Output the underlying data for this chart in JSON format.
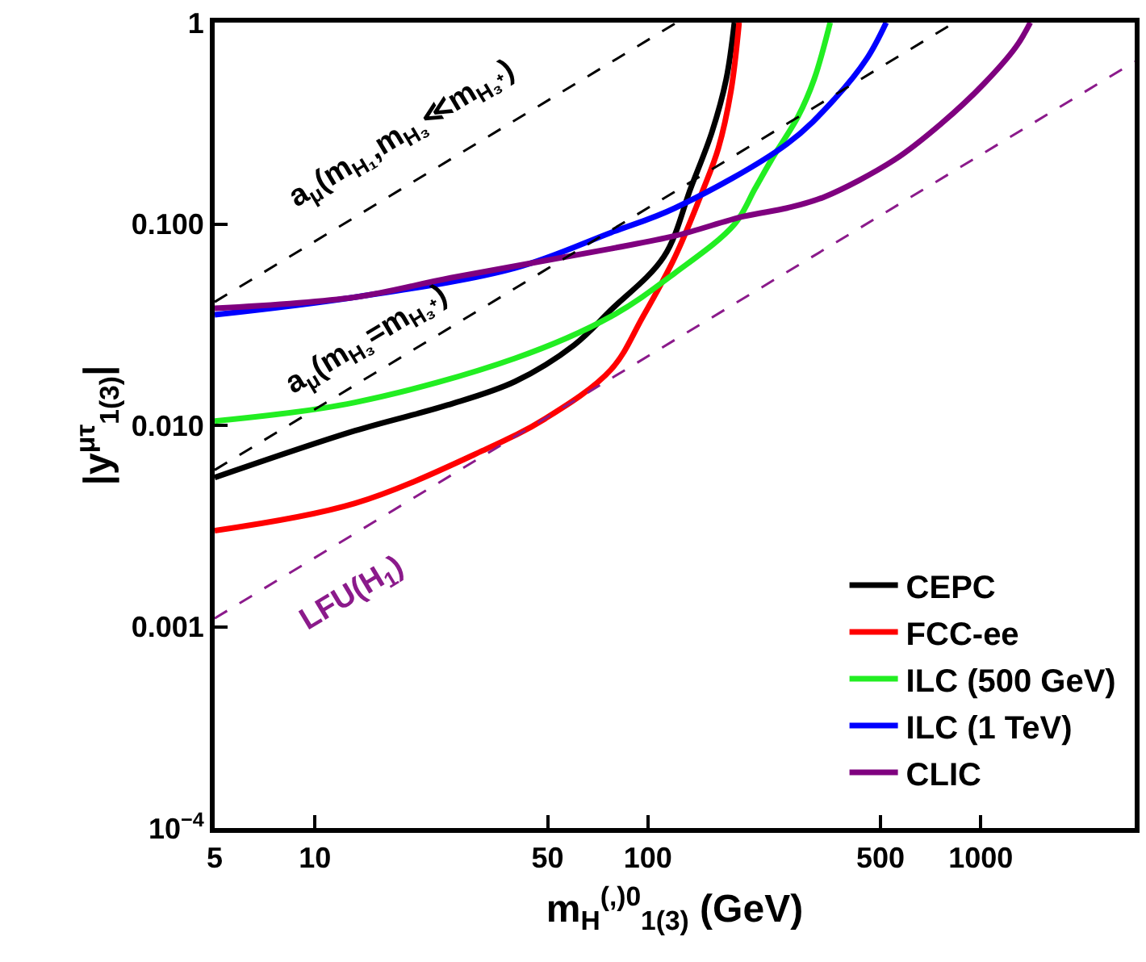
{
  "chart_data": {
    "type": "line",
    "xlabel": "m$_{H}$$^{(,)0}$$_{1(3)}$ (GeV)",
    "ylabel": "|y$^{μτ}$$_{1(3)}$|",
    "log": "xy",
    "legend": "bottom right",
    "marker": "none",
    "xlim": [
      5,
      2900
    ],
    "xticks": [
      5,
      10,
      50,
      100,
      500,
      1000
    ],
    "ylim": [
      0.0001,
      1
    ],
    "yticks": [
      {
        "value": 0.0001,
        "label": "10$^{−4}$"
      },
      {
        "value": 0.001,
        "label": "0.001"
      },
      {
        "value": 0.01,
        "label": "0.010"
      },
      {
        "value": 0.1,
        "label": "0.100"
      },
      1
    ],
    "series": [
      {
        "name": "CEPC",
        "color": "#000000",
        "x": [
          5,
          13.2,
          25,
          39.9,
          60,
          77.5,
          111.7,
          134.8,
          155.7,
          172,
          182
        ],
        "values": [
          0.0055,
          0.0094,
          0.0126,
          0.0165,
          0.025,
          0.0374,
          0.0687,
          0.152,
          0.285,
          0.524,
          1
        ]
      },
      {
        "name": "FCC-ee",
        "color": "#ff0000",
        "x": [
          5,
          13.2,
          32,
          49.2,
          77.5,
          96.7,
          120.7,
          145.6,
          162.8,
          177.8,
          188
        ],
        "values": [
          0.003,
          0.0041,
          0.0075,
          0.0108,
          0.0189,
          0.0347,
          0.0687,
          0.144,
          0.237,
          0.46,
          1
        ]
      },
      {
        "name": "ILC (500 GeV)",
        "color": "#22ee22",
        "x": [
          5,
          13.2,
          39.9,
          77.5,
          120.7,
          182,
          210,
          235,
          283,
          316,
          353
        ],
        "values": [
          0.0105,
          0.013,
          0.0215,
          0.0347,
          0.0571,
          0.0995,
          0.15,
          0.208,
          0.343,
          0.524,
          1
        ]
      },
      {
        "name": "ILC (1 TeV)",
        "color": "#0000ff",
        "x": [
          5,
          13.2,
          39.9,
          77.5,
          120.7,
          262,
          365,
          456,
          520
        ],
        "values": [
          0.0354,
          0.0433,
          0.0604,
          0.0906,
          0.12,
          0.25,
          0.42,
          0.667,
          1
        ]
      },
      {
        "name": "CLIC",
        "color": "#7f007f",
        "x": [
          5,
          13.2,
          25.6,
          77.5,
          120.7,
          194,
          262,
          338,
          550,
          766,
          1021,
          1276,
          1409
        ],
        "values": [
          0.0381,
          0.0433,
          0.054,
          0.0754,
          0.0873,
          0.109,
          0.12,
          0.136,
          0.208,
          0.318,
          0.496,
          0.758,
          1
        ]
      },
      {
        "color": "#000000",
        "line_style": "dashed",
        "x": [
          5,
          122
        ],
        "values": [
          0.041,
          1
        ]
      },
      {
        "color": "#000000",
        "line_style": "dashed",
        "x": [
          5,
          833
        ],
        "values": [
          0.006,
          1
        ]
      },
      {
        "color": "#8b1a8b",
        "line_style": "dashed",
        "x": [
          5,
          2900
        ],
        "values": [
          0.0011,
          0.64
        ]
      }
    ],
    "annotations": [
      "a$_{μ}$(m$_{H₁}$,m$_{H₃}$≪m$_{H₃⁺}$)",
      "a$_{μ}$(m$_{H₃}$=m$_{H₃⁺}$)",
      "LFU(H$_{1}$)"
    ]
  }
}
